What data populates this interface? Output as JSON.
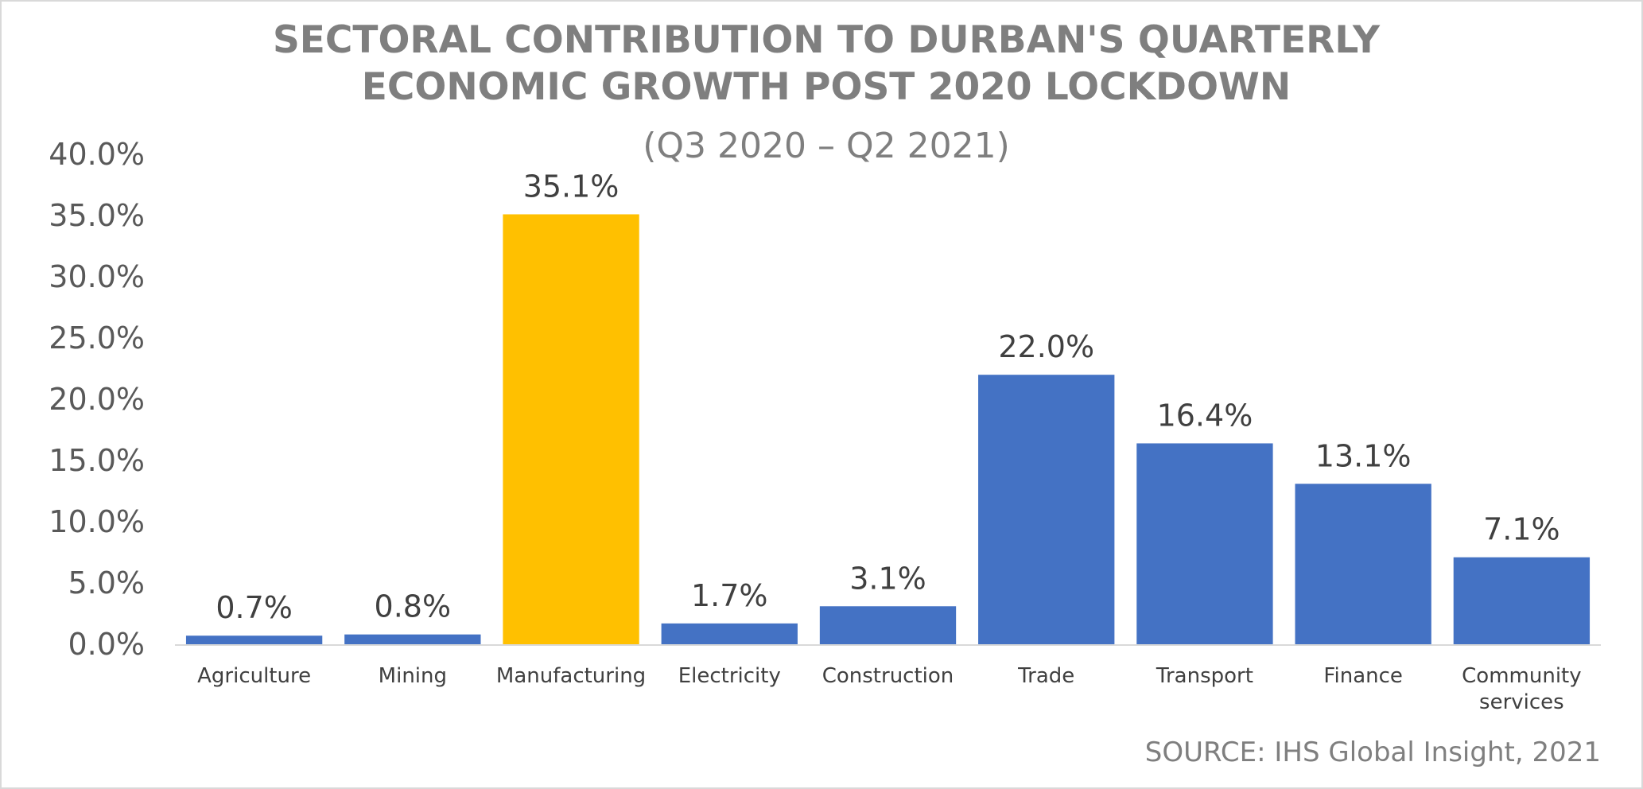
{
  "chart_data": {
    "type": "bar",
    "title_lines": [
      "SECTORAL CONTRIBUTION TO DURBAN'S QUARTERLY",
      "ECONOMIC GROWTH POST 2020 LOCKDOWN"
    ],
    "subtitle": "(Q3 2020 – Q2 2021)",
    "categories": [
      [
        "Agriculture"
      ],
      [
        "Mining"
      ],
      [
        "Manufacturing"
      ],
      [
        "Electricity"
      ],
      [
        "Construction"
      ],
      [
        "Trade"
      ],
      [
        "Transport"
      ],
      [
        "Finance"
      ],
      [
        "Community",
        "services"
      ]
    ],
    "values": [
      0.7,
      0.8,
      35.1,
      1.7,
      3.1,
      22.0,
      16.4,
      13.1,
      7.1
    ],
    "data_labels": [
      "0.7%",
      "0.8%",
      "35.1%",
      "1.7%",
      "3.1%",
      "22.0%",
      "16.4%",
      "13.1%",
      "7.1%"
    ],
    "bar_colors": [
      "#4472c4",
      "#4472c4",
      "#ffc000",
      "#4472c4",
      "#4472c4",
      "#4472c4",
      "#4472c4",
      "#4472c4",
      "#4472c4"
    ],
    "ylim": [
      0,
      40
    ],
    "yticks": [
      0,
      5,
      10,
      15,
      20,
      25,
      30,
      35,
      40
    ],
    "ytick_labels": [
      "0.0%",
      "5.0%",
      "10.0%",
      "15.0%",
      "20.0%",
      "25.0%",
      "30.0%",
      "35.0%",
      "40.0%"
    ],
    "xlabel": "",
    "ylabel": "",
    "grid": false,
    "legend": "none",
    "source_note": "SOURCE: IHS Global Insight, 2021"
  },
  "colors": {
    "axis": "#d9d9d9",
    "title": "#7f7f7f"
  }
}
